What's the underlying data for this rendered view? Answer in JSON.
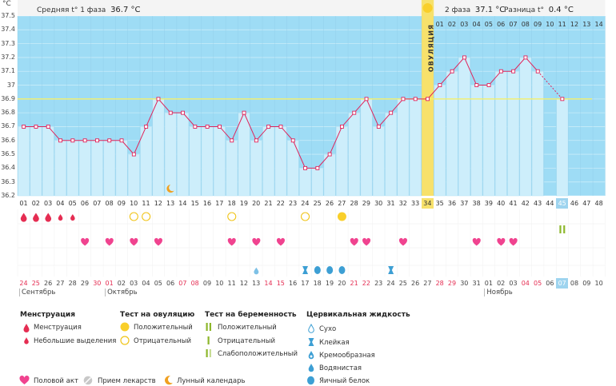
{
  "header": {
    "unit": "°C",
    "phase1_label": "Средняя t° 1 фаза",
    "phase1_value": "36.7 °C",
    "phase2_label": "2 фаза",
    "phase2_value": "37.1 °C",
    "diff_label": "Разница t°",
    "diff_value": "0.4 °C",
    "ovulation_label": "ОВУЛЯЦИЯ"
  },
  "top_labels": [
    "01",
    "02",
    "03",
    "04",
    "05",
    "06",
    "07",
    "08",
    "09",
    "10",
    "11",
    "12",
    "13",
    "14"
  ],
  "cycle_days": [
    "01",
    "02",
    "03",
    "04",
    "05",
    "06",
    "07",
    "08",
    "09",
    "10",
    "11",
    "12",
    "13",
    "14",
    "15",
    "16",
    "17",
    "18",
    "19",
    "20",
    "21",
    "22",
    "23",
    "24",
    "25",
    "26",
    "27",
    "28",
    "29",
    "30",
    "31",
    "32",
    "33",
    "34",
    "35",
    "36",
    "37",
    "38",
    "39",
    "40",
    "41",
    "42",
    "43",
    "44",
    "45",
    "46",
    "47",
    "48"
  ],
  "calendar_dates": [
    "24",
    "25",
    "26",
    "27",
    "28",
    "29",
    "30",
    "01",
    "02",
    "03",
    "04",
    "05",
    "06",
    "07",
    "08",
    "09",
    "10",
    "11",
    "12",
    "13",
    "14",
    "15",
    "16",
    "17",
    "18",
    "19",
    "20",
    "21",
    "22",
    "23",
    "24",
    "25",
    "26",
    "27",
    "28",
    "29",
    "30",
    "31",
    "01",
    "02",
    "03",
    "04",
    "05",
    "06",
    "07",
    "08",
    "09",
    "10"
  ],
  "weekend_dates": [
    0,
    1,
    6,
    7,
    13,
    14,
    20,
    21,
    27,
    28,
    34,
    35,
    41,
    42
  ],
  "months": [
    {
      "name": "Сентябрь",
      "col": 0
    },
    {
      "name": "Октябрь",
      "col": 7
    },
    {
      "name": "Ноябрь",
      "col": 38
    }
  ],
  "markers": {
    "menstruation": [
      0,
      1,
      2,
      3,
      4
    ],
    "menstruation_small": [
      3,
      4
    ],
    "ovulation_negative": [
      9,
      10,
      17,
      23
    ],
    "ovulation_positive": [
      26
    ],
    "intercourse": [
      5,
      7,
      9,
      11,
      17,
      19,
      21,
      27,
      28,
      31,
      37,
      39,
      40
    ],
    "mucus_watery": [
      19,
      24,
      25,
      26
    ],
    "mucus_sticky": [
      23,
      30
    ],
    "pregnancy_positive": [
      44
    ],
    "moon": [
      12
    ]
  },
  "legend": {
    "menstruation_title": "Менструация",
    "menstruation_items": [
      "Менструация",
      "Небольшие выделения"
    ],
    "ovulation_test_title": "Тест на овуляцию",
    "ovulation_test_items": [
      "Положительный",
      "Отрицательный"
    ],
    "pregnancy_test_title": "Тест на беременность",
    "pregnancy_test_items": [
      "Положительный",
      "Отрицательный",
      "Слабоположительный"
    ],
    "mucus_title": "Цервикальная жидкость",
    "mucus_items": [
      "Сухо",
      "Клейкая",
      "Кремообразная",
      "Водянистая",
      "Яичный белок"
    ],
    "bottom_items": [
      "Половой акт",
      "Прием лекарств",
      "Лунный календарь"
    ]
  },
  "colors": {
    "chart_bg": "#9edcf5",
    "bar_fill": "#cdeefb",
    "line": "#e0235a",
    "coverline": "#f5f06a",
    "ovulation": "#f7e16b",
    "red": "#e52d52",
    "pink": "#f0438f",
    "blue": "#3d9fd4",
    "green": "#8db72b",
    "highlight": "#9ed4ef"
  },
  "chart_data": {
    "type": "line",
    "xlabel": "",
    "ylabel": "°C",
    "ylim": [
      36.2,
      37.5
    ],
    "yticks": [
      "36.2",
      "36.3",
      "36.4",
      "36.5",
      "36.6",
      "36.7",
      "36.8",
      "36.9",
      "37",
      "37.1",
      "37.2",
      "37.3",
      "37.4",
      "37.5"
    ],
    "coverline": 36.9,
    "ovulation_day": 34,
    "current_day": 45,
    "x": [
      1,
      2,
      3,
      4,
      5,
      6,
      7,
      8,
      9,
      10,
      11,
      12,
      13,
      14,
      15,
      16,
      17,
      18,
      19,
      20,
      21,
      22,
      23,
      24,
      25,
      26,
      27,
      28,
      29,
      30,
      31,
      32,
      33,
      34,
      35,
      36,
      37,
      38,
      39,
      40,
      41,
      42,
      43,
      44,
      45
    ],
    "values": [
      36.7,
      36.7,
      36.7,
      36.6,
      36.6,
      36.6,
      36.6,
      36.6,
      36.6,
      36.5,
      36.7,
      36.9,
      36.8,
      36.8,
      36.7,
      36.7,
      36.7,
      36.6,
      36.8,
      36.6,
      36.7,
      36.7,
      36.6,
      36.4,
      36.4,
      36.5,
      36.7,
      36.8,
      36.9,
      36.7,
      36.8,
      36.9,
      36.9,
      36.9,
      37.0,
      37.1,
      37.2,
      37.0,
      37.0,
      37.1,
      37.1,
      37.2,
      37.1,
      null,
      36.9
    ]
  }
}
